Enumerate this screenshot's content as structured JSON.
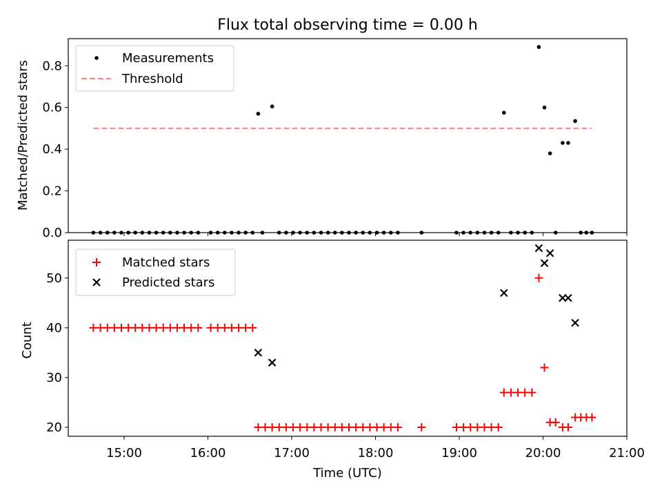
{
  "chart_data": [
    {
      "type": "scatter",
      "title": "Flux total observing time = 0.00 h",
      "xlabel": "",
      "ylabel": "Matched/Predicted stars",
      "ylim": [
        0,
        0.93
      ],
      "xlim": [
        "14:20",
        "21:00"
      ],
      "yticks": [
        "0.0",
        "0.2",
        "0.4",
        "0.6",
        "0.8"
      ],
      "legend_position": "top-left",
      "series": [
        {
          "name": "Measurements",
          "color": "#000000",
          "marker": "dot",
          "points": [
            [
              "14:38",
              0
            ],
            [
              "14:43",
              0
            ],
            [
              "14:48",
              0
            ],
            [
              "14:53",
              0
            ],
            [
              "14:58",
              0
            ],
            [
              "15:03",
              0
            ],
            [
              "15:08",
              0
            ],
            [
              "15:13",
              0
            ],
            [
              "15:18",
              0
            ],
            [
              "15:23",
              0
            ],
            [
              "15:28",
              0
            ],
            [
              "15:33",
              0
            ],
            [
              "15:38",
              0
            ],
            [
              "15:43",
              0
            ],
            [
              "15:48",
              0
            ],
            [
              "15:53",
              0
            ],
            [
              "16:02",
              0
            ],
            [
              "16:07",
              0
            ],
            [
              "16:12",
              0
            ],
            [
              "16:17",
              0
            ],
            [
              "16:22",
              0
            ],
            [
              "16:27",
              0
            ],
            [
              "16:32",
              0
            ],
            [
              "16:36",
              0.57
            ],
            [
              "16:39",
              0
            ],
            [
              "16:46",
              0.605
            ],
            [
              "16:51",
              0
            ],
            [
              "16:56",
              0
            ],
            [
              "17:01",
              0
            ],
            [
              "17:06",
              0
            ],
            [
              "17:11",
              0
            ],
            [
              "17:16",
              0
            ],
            [
              "17:21",
              0
            ],
            [
              "17:26",
              0
            ],
            [
              "17:31",
              0
            ],
            [
              "17:36",
              0
            ],
            [
              "17:41",
              0
            ],
            [
              "17:46",
              0
            ],
            [
              "17:51",
              0
            ],
            [
              "17:56",
              0
            ],
            [
              "18:01",
              0
            ],
            [
              "18:06",
              0
            ],
            [
              "18:11",
              0
            ],
            [
              "18:16",
              0
            ],
            [
              "18:33",
              0
            ],
            [
              "18:58",
              0
            ],
            [
              "19:03",
              0
            ],
            [
              "19:08",
              0
            ],
            [
              "19:13",
              0
            ],
            [
              "19:18",
              0
            ],
            [
              "19:23",
              0
            ],
            [
              "19:28",
              0
            ],
            [
              "19:32",
              0.575
            ],
            [
              "19:37",
              0
            ],
            [
              "19:42",
              0
            ],
            [
              "19:47",
              0
            ],
            [
              "19:52",
              0
            ],
            [
              "19:57",
              0.89
            ],
            [
              "20:01",
              0.6
            ],
            [
              "20:05",
              0.38
            ],
            [
              "20:09",
              0
            ],
            [
              "20:14",
              0.43
            ],
            [
              "20:18",
              0.43
            ],
            [
              "20:23",
              0.535
            ],
            [
              "20:27",
              0
            ],
            [
              "20:31",
              0
            ],
            [
              "20:35",
              0
            ]
          ]
        },
        {
          "name": "Threshold",
          "color": "#ff7f7f",
          "style": "dashed",
          "points": [
            [
              "14:38",
              0.5
            ],
            [
              "20:35",
              0.5
            ]
          ]
        }
      ]
    },
    {
      "type": "scatter",
      "title": "",
      "xlabel": "Time (UTC)",
      "ylabel": "Count",
      "ylim": [
        18.2,
        57.6
      ],
      "xlim": [
        "14:20",
        "21:00"
      ],
      "xticks": [
        "15:00",
        "16:00",
        "17:00",
        "18:00",
        "19:00",
        "20:00",
        "21:00"
      ],
      "yticks": [
        "20",
        "30",
        "40",
        "50"
      ],
      "legend_position": "top-left",
      "series": [
        {
          "name": "Matched stars",
          "color": "#ff0000",
          "marker": "plus",
          "points": [
            [
              "14:38",
              40
            ],
            [
              "14:43",
              40
            ],
            [
              "14:48",
              40
            ],
            [
              "14:53",
              40
            ],
            [
              "14:58",
              40
            ],
            [
              "15:03",
              40
            ],
            [
              "15:08",
              40
            ],
            [
              "15:13",
              40
            ],
            [
              "15:18",
              40
            ],
            [
              "15:23",
              40
            ],
            [
              "15:28",
              40
            ],
            [
              "15:33",
              40
            ],
            [
              "15:38",
              40
            ],
            [
              "15:43",
              40
            ],
            [
              "15:48",
              40
            ],
            [
              "15:53",
              40
            ],
            [
              "16:02",
              40
            ],
            [
              "16:07",
              40
            ],
            [
              "16:12",
              40
            ],
            [
              "16:17",
              40
            ],
            [
              "16:22",
              40
            ],
            [
              "16:27",
              40
            ],
            [
              "16:32",
              40
            ],
            [
              "16:36",
              20
            ],
            [
              "16:41",
              20
            ],
            [
              "16:46",
              20
            ],
            [
              "16:51",
              20
            ],
            [
              "16:56",
              20
            ],
            [
              "17:01",
              20
            ],
            [
              "17:06",
              20
            ],
            [
              "17:11",
              20
            ],
            [
              "17:16",
              20
            ],
            [
              "17:21",
              20
            ],
            [
              "17:26",
              20
            ],
            [
              "17:31",
              20
            ],
            [
              "17:36",
              20
            ],
            [
              "17:41",
              20
            ],
            [
              "17:46",
              20
            ],
            [
              "17:51",
              20
            ],
            [
              "17:56",
              20
            ],
            [
              "18:01",
              20
            ],
            [
              "18:06",
              20
            ],
            [
              "18:11",
              20
            ],
            [
              "18:16",
              20
            ],
            [
              "18:33",
              20
            ],
            [
              "18:58",
              20
            ],
            [
              "19:03",
              20
            ],
            [
              "19:08",
              20
            ],
            [
              "19:13",
              20
            ],
            [
              "19:18",
              20
            ],
            [
              "19:23",
              20
            ],
            [
              "19:28",
              20
            ],
            [
              "19:32",
              27
            ],
            [
              "19:37",
              27
            ],
            [
              "19:42",
              27
            ],
            [
              "19:47",
              27
            ],
            [
              "19:52",
              27
            ],
            [
              "19:57",
              50
            ],
            [
              "20:01",
              32
            ],
            [
              "20:05",
              21
            ],
            [
              "20:09",
              21
            ],
            [
              "20:14",
              20
            ],
            [
              "20:18",
              20
            ],
            [
              "20:23",
              22
            ],
            [
              "20:27",
              22
            ],
            [
              "20:31",
              22
            ],
            [
              "20:35",
              22
            ]
          ]
        },
        {
          "name": "Predicted stars",
          "color": "#000000",
          "marker": "x",
          "points": [
            [
              "16:36",
              35
            ],
            [
              "16:46",
              33
            ],
            [
              "19:32",
              47
            ],
            [
              "19:57",
              56
            ],
            [
              "20:01",
              53
            ],
            [
              "20:05",
              55
            ],
            [
              "20:14",
              46
            ],
            [
              "20:18",
              46
            ],
            [
              "20:23",
              41
            ]
          ]
        }
      ]
    }
  ]
}
